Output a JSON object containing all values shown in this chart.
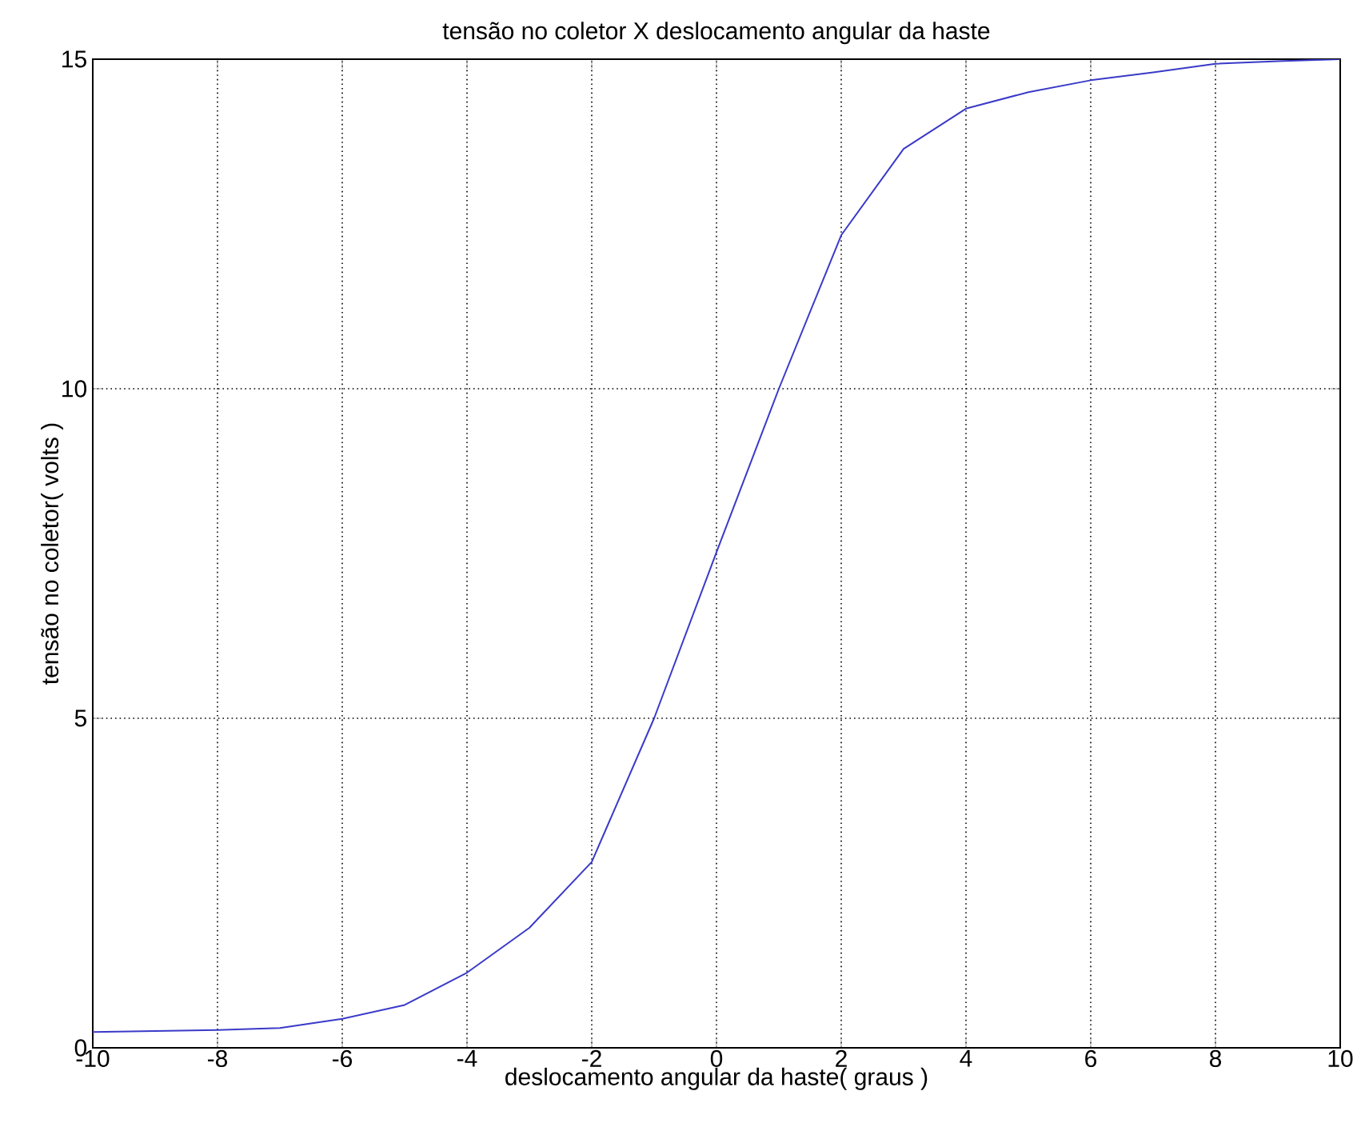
{
  "chart_data": {
    "type": "line",
    "title": "tensão no coletor X deslocamento angular da haste",
    "xlabel": "deslocamento angular da haste( graus )",
    "ylabel": "tensão no coletor( volts )",
    "x": [
      -10,
      -8,
      -7,
      -6,
      -5,
      -4,
      -3,
      -2,
      -1,
      0,
      1,
      2,
      3,
      4,
      5,
      6,
      7,
      8,
      9,
      10
    ],
    "values": [
      0.24,
      0.27,
      0.3,
      0.44,
      0.65,
      1.14,
      1.82,
      2.82,
      5.0,
      7.52,
      10.0,
      12.33,
      13.64,
      14.25,
      14.5,
      14.68,
      14.8,
      14.93,
      14.97,
      15.0
    ],
    "color": "#3a3ac8",
    "xlim": [
      -10,
      10
    ],
    "ylim": [
      0,
      15
    ],
    "xticks": [
      -10,
      -8,
      -6,
      -4,
      -2,
      0,
      2,
      4,
      6,
      8,
      10
    ],
    "yticks": [
      0,
      5,
      10,
      15
    ],
    "grid": true
  }
}
